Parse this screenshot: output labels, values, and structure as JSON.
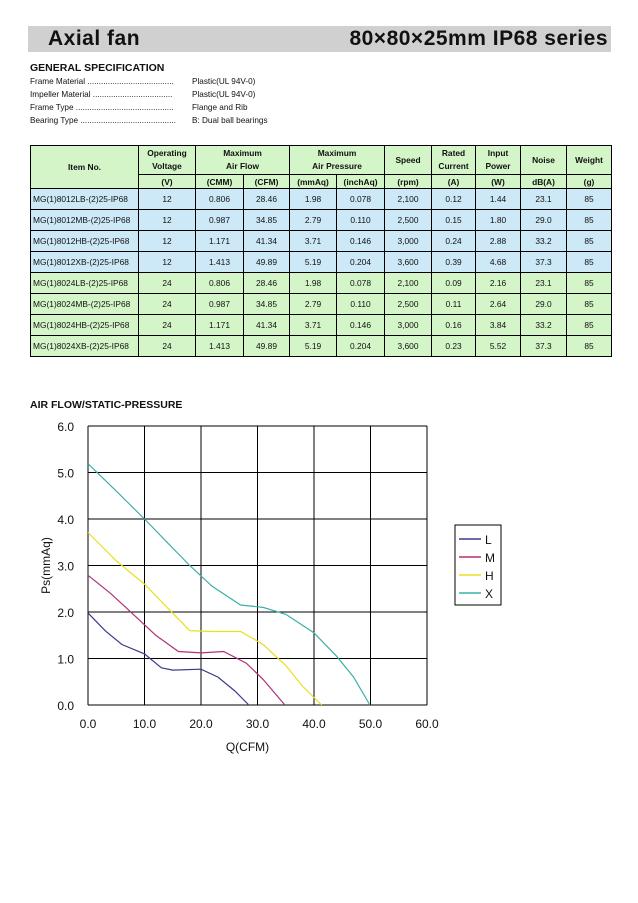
{
  "header": {
    "left_title": "Axial  fan",
    "right_title": "80×80×25mm  IP68  series"
  },
  "general_spec": {
    "heading": "GENERAL SPECIFICATION",
    "rows": [
      {
        "label": "Frame Material  ......................................",
        "value": "Plastic(UL 94V-0)"
      },
      {
        "label": "Impeller Material  ...................................",
        "value": "Plastic(UL 94V-0)"
      },
      {
        "label": "Frame Type  ...........................................",
        "value": "Flange and    Rib"
      },
      {
        "label": "Bearing Type ..........................................",
        "value": "B: Dual ball bearings"
      }
    ]
  },
  "table": {
    "headers": {
      "item": "Item No.",
      "op_voltage_1": "Operating",
      "op_voltage_2": "Voltage",
      "airflow_1": "Maximum",
      "airflow_2": "Air Flow",
      "pressure_1": "Maximum",
      "pressure_2": "Air Pressure",
      "speed": "Speed",
      "current_1": "Rated",
      "current_2": "Current",
      "power_1": "Input",
      "power_2": "Power",
      "noise": "Noise",
      "weight": "Weight"
    },
    "units": [
      "(V)",
      "(CMM)",
      "(CFM)",
      "(mmAq)",
      "(inchAq)",
      "(rpm)",
      "(A)",
      "(W)",
      "dB(A)",
      "(g)"
    ],
    "rows": [
      [
        "MG(1)8012LB-(2)25-IP68",
        "12",
        "0.806",
        "28.46",
        "1.98",
        "0.078",
        "2,100",
        "0.12",
        "1.44",
        "23.1",
        "85"
      ],
      [
        "MG(1)8012MB-(2)25-IP68",
        "12",
        "0.987",
        "34.85",
        "2.79",
        "0.110",
        "2,500",
        "0.15",
        "1.80",
        "29.0",
        "85"
      ],
      [
        "MG(1)8012HB-(2)25-IP68",
        "12",
        "1.171",
        "41.34",
        "3.71",
        "0.146",
        "3,000",
        "0.24",
        "2.88",
        "33.2",
        "85"
      ],
      [
        "MG(1)8012XB-(2)25-IP68",
        "12",
        "1.413",
        "49.89",
        "5.19",
        "0.204",
        "3,600",
        "0.39",
        "4.68",
        "37.3",
        "85"
      ],
      [
        "MG(1)8024LB-(2)25-IP68",
        "24",
        "0.806",
        "28.46",
        "1.98",
        "0.078",
        "2,100",
        "0.09",
        "2.16",
        "23.1",
        "85"
      ],
      [
        "MG(1)8024MB-(2)25-IP68",
        "24",
        "0.987",
        "34.85",
        "2.79",
        "0.110",
        "2,500",
        "0.11",
        "2.64",
        "29.0",
        "85"
      ],
      [
        "MG(1)8024HB-(2)25-IP68",
        "24",
        "1.171",
        "41.34",
        "3.71",
        "0.146",
        "3,000",
        "0.16",
        "3.84",
        "33.2",
        "85"
      ],
      [
        "MG(1)8024XB-(2)25-IP68",
        "24",
        "1.413",
        "49.89",
        "5.19",
        "0.204",
        "3,600",
        "0.23",
        "5.52",
        "37.3",
        "85"
      ]
    ],
    "row_colors": [
      "#cde8f6",
      "#d4f5c8"
    ]
  },
  "chart_heading": "AIR FLOW/STATIC-PRESSURE",
  "chart_data": {
    "type": "line",
    "xlabel": "Q(CFM)",
    "ylabel": "Ps(mmAq)",
    "xlim": [
      0,
      60
    ],
    "ylim": [
      0,
      6
    ],
    "x_ticks": [
      "0.0",
      "10.0",
      "20.0",
      "30.0",
      "40.0",
      "50.0",
      "60.0"
    ],
    "y_ticks": [
      "0.0",
      "1.0",
      "2.0",
      "3.0",
      "4.0",
      "5.0",
      "6.0"
    ],
    "grid": true,
    "legend_position": "right",
    "series": [
      {
        "name": "L",
        "color": "#3a3a8c",
        "points": [
          [
            0,
            1.98
          ],
          [
            3,
            1.6
          ],
          [
            6,
            1.3
          ],
          [
            10,
            1.1
          ],
          [
            13,
            0.8
          ],
          [
            15,
            0.75
          ],
          [
            20,
            0.77
          ],
          [
            23,
            0.6
          ],
          [
            26,
            0.3
          ],
          [
            28.46,
            0
          ]
        ]
      },
      {
        "name": "M",
        "color": "#b0307a",
        "points": [
          [
            0,
            2.79
          ],
          [
            4,
            2.4
          ],
          [
            8,
            1.95
          ],
          [
            12,
            1.5
          ],
          [
            16,
            1.15
          ],
          [
            20,
            1.12
          ],
          [
            24,
            1.15
          ],
          [
            28,
            0.9
          ],
          [
            31,
            0.55
          ],
          [
            34.85,
            0
          ]
        ]
      },
      {
        "name": "H",
        "color": "#e8e020",
        "points": [
          [
            0,
            3.71
          ],
          [
            5,
            3.1
          ],
          [
            10,
            2.6
          ],
          [
            14,
            2.1
          ],
          [
            18,
            1.6
          ],
          [
            22,
            1.58
          ],
          [
            27,
            1.58
          ],
          [
            31,
            1.3
          ],
          [
            35,
            0.85
          ],
          [
            38,
            0.4
          ],
          [
            41.34,
            0
          ]
        ]
      },
      {
        "name": "X",
        "color": "#3bb0a8",
        "points": [
          [
            0,
            5.19
          ],
          [
            5,
            4.6
          ],
          [
            10,
            4.0
          ],
          [
            14,
            3.5
          ],
          [
            18,
            3.0
          ],
          [
            22,
            2.55
          ],
          [
            27,
            2.15
          ],
          [
            31,
            2.1
          ],
          [
            35,
            1.95
          ],
          [
            40,
            1.55
          ],
          [
            44,
            1.05
          ],
          [
            47,
            0.6
          ],
          [
            49.89,
            0
          ]
        ]
      }
    ]
  }
}
